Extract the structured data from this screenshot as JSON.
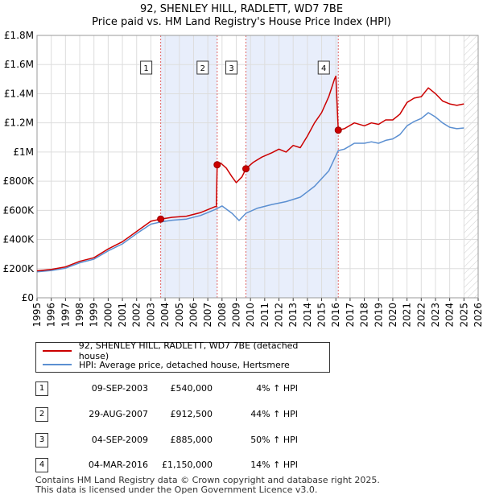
{
  "title_line1": "92, SHENLEY HILL, RADLETT, WD7 7BE",
  "title_line2": "Price paid vs. HM Land Registry's House Price Index (HPI)",
  "legend": [
    {
      "label": "92, SHENLEY HILL, RADLETT, WD7 7BE (detached house)",
      "color": "#cc0000"
    },
    {
      "label": "HPI: Average price, detached house, Hertsmere",
      "color": "#5b8fd1"
    }
  ],
  "sales": [
    {
      "num": "1",
      "date": "09-SEP-2003",
      "price": "£540,000",
      "hpi": "4% ↑ HPI"
    },
    {
      "num": "2",
      "date": "29-AUG-2007",
      "price": "£912,500",
      "hpi": "44% ↑ HPI"
    },
    {
      "num": "3",
      "date": "04-SEP-2009",
      "price": "£885,000",
      "hpi": "50% ↑ HPI"
    },
    {
      "num": "4",
      "date": "04-MAR-2016",
      "price": "£1,150,000",
      "hpi": "14% ↑ HPI"
    }
  ],
  "footer_line1": "Contains HM Land Registry data © Crown copyright and database right 2025.",
  "footer_line2": "This data is licensed under the Open Government Licence v3.0.",
  "chart_data": {
    "type": "line",
    "title": "Price paid vs. HM Land Registry's House Price Index (HPI)",
    "xlim": [
      1995,
      2026
    ],
    "ylim": [
      0,
      1800000
    ],
    "x_ticks": [
      "1995",
      "1996",
      "1997",
      "1998",
      "1999",
      "2000",
      "2001",
      "2002",
      "2003",
      "2004",
      "2005",
      "2006",
      "2007",
      "2008",
      "2009",
      "2010",
      "2011",
      "2012",
      "2013",
      "2014",
      "2015",
      "2016",
      "2017",
      "2018",
      "2019",
      "2020",
      "2021",
      "2022",
      "2023",
      "2024",
      "2025",
      "2026"
    ],
    "y_ticks": [
      {
        "value": 0,
        "label": "£0"
      },
      {
        "value": 200000,
        "label": "£200K"
      },
      {
        "value": 400000,
        "label": "£400K"
      },
      {
        "value": 600000,
        "label": "£600K"
      },
      {
        "value": 800000,
        "label": "£800K"
      },
      {
        "value": 1000000,
        "label": "£1M"
      },
      {
        "value": 1200000,
        "label": "£1.2M"
      },
      {
        "value": 1400000,
        "label": "£1.4M"
      },
      {
        "value": 1600000,
        "label": "£1.6M"
      },
      {
        "value": 1800000,
        "label": "£1.8M"
      }
    ],
    "shaded_periods": [
      [
        2003.69,
        2007.66
      ],
      [
        2009.68,
        2016.17
      ]
    ],
    "future_from": 2025.0,
    "sale_points": [
      {
        "label": "1",
        "x": 2003.69,
        "y": 540000
      },
      {
        "label": "2",
        "x": 2007.66,
        "y": 912500
      },
      {
        "label": "3",
        "x": 2009.68,
        "y": 885000
      },
      {
        "label": "4",
        "x": 2016.17,
        "y": 1150000
      }
    ],
    "series": [
      {
        "name": "92, SHENLEY HILL, RADLETT, WD7 7BE (detached house)",
        "color": "#cc0000",
        "points": [
          [
            1995.0,
            185000
          ],
          [
            1996.0,
            195000
          ],
          [
            1997.0,
            212000
          ],
          [
            1998.0,
            250000
          ],
          [
            1999.0,
            275000
          ],
          [
            2000.0,
            335000
          ],
          [
            2001.0,
            385000
          ],
          [
            2002.0,
            455000
          ],
          [
            2003.0,
            525000
          ],
          [
            2003.69,
            540000
          ],
          [
            2004.5,
            552000
          ],
          [
            2005.5,
            560000
          ],
          [
            2006.5,
            585000
          ],
          [
            2007.5,
            625000
          ],
          [
            2007.6,
            625000
          ],
          [
            2007.66,
            912500
          ],
          [
            2007.9,
            925000
          ],
          [
            2008.3,
            890000
          ],
          [
            2008.7,
            830000
          ],
          [
            2009.0,
            790000
          ],
          [
            2009.4,
            830000
          ],
          [
            2009.68,
            885000
          ],
          [
            2010.2,
            930000
          ],
          [
            2010.8,
            965000
          ],
          [
            2011.5,
            995000
          ],
          [
            2012.0,
            1020000
          ],
          [
            2012.5,
            1000000
          ],
          [
            2013.0,
            1045000
          ],
          [
            2013.5,
            1030000
          ],
          [
            2014.0,
            1110000
          ],
          [
            2014.5,
            1200000
          ],
          [
            2015.0,
            1270000
          ],
          [
            2015.5,
            1380000
          ],
          [
            2015.9,
            1500000
          ],
          [
            2016.0,
            1520000
          ],
          [
            2016.17,
            1150000
          ],
          [
            2016.6,
            1160000
          ],
          [
            2017.3,
            1200000
          ],
          [
            2018.0,
            1180000
          ],
          [
            2018.5,
            1200000
          ],
          [
            2019.0,
            1190000
          ],
          [
            2019.5,
            1220000
          ],
          [
            2020.0,
            1220000
          ],
          [
            2020.5,
            1260000
          ],
          [
            2021.0,
            1340000
          ],
          [
            2021.5,
            1370000
          ],
          [
            2022.0,
            1380000
          ],
          [
            2022.5,
            1440000
          ],
          [
            2023.0,
            1400000
          ],
          [
            2023.5,
            1350000
          ],
          [
            2024.0,
            1330000
          ],
          [
            2024.5,
            1320000
          ],
          [
            2025.0,
            1330000
          ]
        ]
      },
      {
        "name": "HPI: Average price, detached house, Hertsmere",
        "color": "#5b8fd1",
        "points": [
          [
            1995.0,
            178000
          ],
          [
            1996.0,
            187000
          ],
          [
            1997.0,
            203000
          ],
          [
            1998.0,
            240000
          ],
          [
            1999.0,
            265000
          ],
          [
            2000.0,
            322000
          ],
          [
            2001.0,
            370000
          ],
          [
            2002.0,
            440000
          ],
          [
            2003.0,
            505000
          ],
          [
            2003.69,
            520000
          ],
          [
            2004.5,
            532000
          ],
          [
            2005.5,
            540000
          ],
          [
            2006.5,
            565000
          ],
          [
            2007.5,
            605000
          ],
          [
            2008.0,
            630000
          ],
          [
            2008.7,
            580000
          ],
          [
            2009.2,
            530000
          ],
          [
            2009.68,
            580000
          ],
          [
            2010.5,
            615000
          ],
          [
            2011.5,
            640000
          ],
          [
            2012.5,
            660000
          ],
          [
            2013.5,
            690000
          ],
          [
            2014.5,
            765000
          ],
          [
            2015.5,
            870000
          ],
          [
            2016.17,
            1010000
          ],
          [
            2016.6,
            1020000
          ],
          [
            2017.3,
            1060000
          ],
          [
            2018.0,
            1060000
          ],
          [
            2018.5,
            1070000
          ],
          [
            2019.0,
            1060000
          ],
          [
            2019.5,
            1080000
          ],
          [
            2020.0,
            1090000
          ],
          [
            2020.5,
            1120000
          ],
          [
            2021.0,
            1180000
          ],
          [
            2021.5,
            1210000
          ],
          [
            2022.0,
            1230000
          ],
          [
            2022.5,
            1270000
          ],
          [
            2023.0,
            1240000
          ],
          [
            2023.5,
            1200000
          ],
          [
            2024.0,
            1170000
          ],
          [
            2024.5,
            1160000
          ],
          [
            2025.0,
            1165000
          ]
        ]
      }
    ]
  }
}
